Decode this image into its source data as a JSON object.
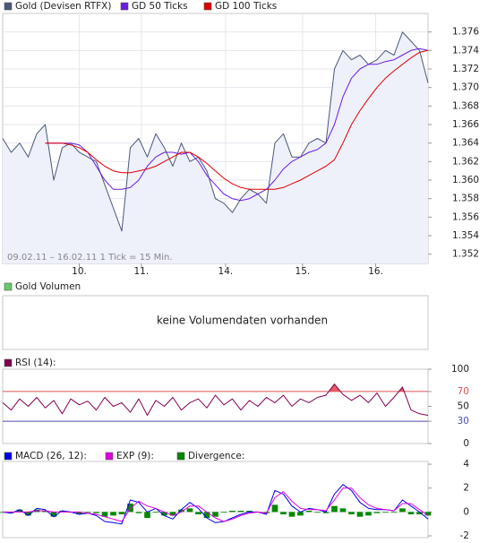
{
  "chart_data": [
    {
      "type": "line",
      "x": [
        0,
        2,
        4,
        6,
        8,
        10,
        12,
        14,
        16,
        18,
        20,
        22,
        24,
        26,
        28,
        30,
        32,
        34,
        36,
        38,
        40,
        42,
        44,
        46,
        48,
        50,
        52,
        54,
        56,
        58,
        60,
        62,
        64,
        66,
        68,
        70,
        72,
        74,
        76,
        78,
        80,
        82,
        84,
        86,
        88,
        90,
        92,
        94,
        96,
        98,
        100
      ],
      "series": [
        {
          "name": "Gold (Devisen RTFX)",
          "color": "#4a5878",
          "fill": "#eef0fa",
          "values": [
            1.3645,
            1.363,
            1.364,
            1.3625,
            1.365,
            1.366,
            1.36,
            1.3635,
            1.364,
            1.363,
            1.3625,
            1.362,
            1.3595,
            1.357,
            1.3545,
            1.3635,
            1.3645,
            1.3625,
            1.365,
            1.3635,
            1.3615,
            1.364,
            1.362,
            1.3625,
            1.361,
            1.358,
            1.3575,
            1.3565,
            1.358,
            1.359,
            1.3585,
            1.3575,
            1.364,
            1.365,
            1.3625,
            1.3625,
            1.364,
            1.3645,
            1.364,
            1.372,
            1.374,
            1.373,
            1.3735,
            1.3725,
            1.373,
            1.374,
            1.3735,
            1.376,
            1.375,
            1.374,
            1.3705
          ]
        },
        {
          "name": "GD 50 Ticks",
          "color": "#6a1ee0",
          "values": [
            null,
            null,
            null,
            null,
            null,
            1.364,
            1.364,
            1.364,
            1.364,
            1.3638,
            1.363,
            1.3615,
            1.36,
            1.359,
            1.359,
            1.3592,
            1.36,
            1.3615,
            1.3625,
            1.363,
            1.363,
            1.3628,
            1.363,
            1.362,
            1.3605,
            1.3595,
            1.3585,
            1.358,
            1.3578,
            1.358,
            1.3585,
            1.359,
            1.36,
            1.3612,
            1.362,
            1.3625,
            1.363,
            1.3633,
            1.364,
            1.366,
            1.369,
            1.371,
            1.372,
            1.3725,
            1.3725,
            1.3728,
            1.373,
            1.3735,
            1.374,
            1.3742,
            1.374
          ]
        },
        {
          "name": "GD 100 Ticks",
          "color": "#e00000",
          "values": [
            null,
            null,
            null,
            null,
            null,
            1.364,
            1.364,
            1.364,
            1.3638,
            1.3635,
            1.363,
            1.3622,
            1.3615,
            1.361,
            1.3608,
            1.3608,
            1.361,
            1.3612,
            1.3615,
            1.362,
            1.3625,
            1.363,
            1.363,
            1.3625,
            1.3618,
            1.361,
            1.3602,
            1.3596,
            1.3592,
            1.359,
            1.359,
            1.359,
            1.359,
            1.3592,
            1.3596,
            1.36,
            1.3605,
            1.361,
            1.3615,
            1.3622,
            1.364,
            1.366,
            1.3675,
            1.3688,
            1.37,
            1.371,
            1.3718,
            1.3725,
            1.3732,
            1.3738,
            1.374
          ]
        }
      ],
      "xlim": [
        0,
        100
      ],
      "xticks": [
        {
          "value": 18,
          "label": "10."
        },
        {
          "value": 32.6,
          "label": "11."
        },
        {
          "value": 52.4,
          "label": "14."
        },
        {
          "value": 70.5,
          "label": "15."
        },
        {
          "value": 87.7,
          "label": "16."
        }
      ],
      "ylim": [
        1.351,
        1.378
      ],
      "yticks": [
        1.352,
        1.354,
        1.356,
        1.358,
        {
          "value": 1.36,
          "label": "1.360"
        },
        1.362,
        1.364,
        1.366,
        1.368,
        {
          "value": 1.37,
          "label": "1.370"
        },
        1.372,
        1.374,
        1.376
      ],
      "annotation": "09.02.11 – 16.02.11   1 Tick = 15 Min.",
      "grid": true
    },
    {
      "type": "bar",
      "series": [
        {
          "name": "Gold Volumen",
          "color": "#66cc66"
        }
      ],
      "annotation": "keine Volumendaten vorhanden"
    },
    {
      "type": "line",
      "series": [
        {
          "name": "RSI (14):",
          "color": "#800050",
          "values": [
            55,
            45,
            60,
            50,
            62,
            48,
            58,
            40,
            60,
            52,
            57,
            45,
            62,
            50,
            55,
            42,
            60,
            38,
            58,
            50,
            62,
            45,
            55,
            60,
            48,
            65,
            52,
            60,
            45,
            58,
            50,
            62,
            55,
            65,
            50,
            60,
            55,
            62,
            65,
            80,
            66,
            58,
            65,
            55,
            68,
            50,
            62,
            76,
            45,
            40,
            38
          ]
        }
      ],
      "ylim": [
        0,
        100
      ],
      "yticks": [
        0,
        30,
        50,
        70,
        100
      ],
      "levels": [
        {
          "value": 70,
          "color": "#e05050"
        },
        {
          "value": 30,
          "color": "#4a4ab8"
        }
      ],
      "highlight": "#e85868"
    },
    {
      "type": "macd",
      "series": [
        {
          "name": "MACD (26, 12):",
          "color": "#0000e0",
          "values": [
            0,
            -0.1,
            0.2,
            -0.3,
            0.3,
            0.2,
            -0.4,
            0.1,
            0,
            -0.2,
            -0.1,
            -0.3,
            -0.8,
            -0.9,
            -1.0,
            1.0,
            0.8,
            0,
            0.3,
            -0.3,
            -0.6,
            0.2,
            0.8,
            0.3,
            -0.5,
            -0.9,
            -0.8,
            -0.5,
            -0.2,
            0,
            0,
            -0.2,
            1.8,
            1.5,
            0.5,
            0,
            0.3,
            0.2,
            0,
            1.5,
            2.3,
            1.8,
            0.8,
            0.3,
            0.2,
            0.2,
            0.1,
            1.0,
            0.5,
            0,
            -0.6
          ]
        },
        {
          "name": "EXP (9):",
          "color": "#e000e0",
          "values": [
            0,
            0,
            0,
            0,
            0.1,
            0.1,
            0,
            0,
            0,
            0,
            -0.1,
            -0.2,
            -0.4,
            -0.6,
            -0.8,
            0.3,
            0.9,
            0.5,
            0.3,
            0,
            -0.3,
            0,
            0.5,
            0.5,
            0,
            -0.5,
            -0.8,
            -0.6,
            -0.3,
            -0.1,
            0,
            -0.1,
            1.2,
            1.7,
            0.9,
            0.3,
            0.2,
            0.2,
            0.1,
            1.0,
            2.0,
            2.0,
            1.2,
            0.6,
            0.3,
            0.2,
            0.1,
            0.7,
            0.7,
            0.2,
            -0.3
          ]
        },
        {
          "name": "Divergence:",
          "color": "#008800",
          "type": "bar",
          "values": [
            0,
            -0.1,
            0.2,
            -0.3,
            0.2,
            0.1,
            -0.4,
            0.1,
            0,
            -0.2,
            0,
            -0.1,
            -0.4,
            -0.3,
            -0.2,
            0.7,
            -0.1,
            -0.5,
            0,
            -0.3,
            -0.3,
            0.2,
            0.3,
            -0.2,
            -0.5,
            -0.4,
            0,
            0.1,
            0.1,
            0.1,
            0,
            -0.1,
            0.6,
            -0.2,
            -0.4,
            -0.3,
            0.1,
            0,
            -0.1,
            0.5,
            0.3,
            -0.2,
            -0.4,
            -0.3,
            -0.1,
            0,
            0,
            0.3,
            -0.2,
            -0.2,
            -0.3
          ]
        }
      ],
      "ylim": [
        -2.15,
        4.23
      ],
      "yticks": [
        -2,
        0,
        2,
        4
      ]
    }
  ]
}
